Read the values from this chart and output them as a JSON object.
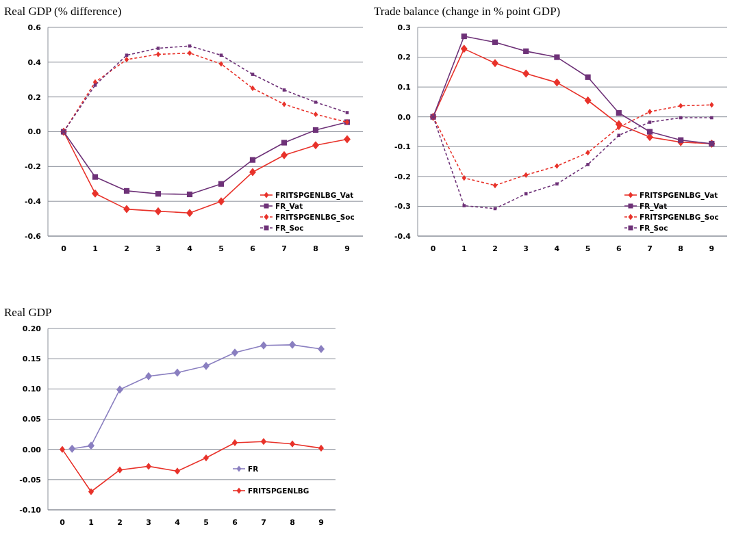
{
  "chart_data": [
    {
      "type": "line",
      "title": "Real GDP (% difference)",
      "x": [
        0,
        1,
        2,
        3,
        4,
        5,
        6,
        7,
        8,
        9
      ],
      "xlim": [
        -0.5,
        9.5
      ],
      "xticks": [
        0,
        1,
        2,
        3,
        4,
        5,
        6,
        7,
        8,
        9
      ],
      "ylim": [
        -0.6,
        0.6
      ],
      "yticks": [
        {
          "value": -0.6,
          "label": "-0.6"
        },
        {
          "value": -0.4,
          "label": "-0.4"
        },
        {
          "value": -0.2,
          "label": "-0.2"
        },
        {
          "value": 0,
          "label": "0.0"
        },
        {
          "value": 0.2,
          "label": "0.2"
        },
        {
          "value": 0.4,
          "label": "0.4"
        },
        {
          "value": 0.6,
          "label": "0.6"
        }
      ],
      "grid": "y",
      "legend": "bottom right",
      "series": [
        {
          "name": "FRITSPGENLBG_Vat",
          "color": "#e8322a",
          "marker": "diamond",
          "line_style": "solid",
          "values": [
            0,
            -0.355,
            -0.445,
            -0.457,
            -0.467,
            -0.4,
            -0.232,
            -0.135,
            -0.078,
            -0.043
          ]
        },
        {
          "name": "FR_Vat",
          "color": "#6e3278",
          "marker": "square",
          "line_style": "solid",
          "values": [
            0,
            -0.26,
            -0.34,
            -0.357,
            -0.36,
            -0.3,
            -0.162,
            -0.063,
            0.01,
            0.055
          ]
        },
        {
          "name": "FRITSPGENLBG_Soc",
          "color": "#e8322a",
          "marker": "diamond",
          "line_style": "dashed",
          "values": [
            0,
            0.285,
            0.415,
            0.445,
            0.452,
            0.39,
            0.25,
            0.158,
            0.1,
            0.055
          ]
        },
        {
          "name": "FR_Soc",
          "color": "#6e3278",
          "marker": "square",
          "line_style": "dashed",
          "values": [
            0,
            0.268,
            0.44,
            0.48,
            0.493,
            0.44,
            0.33,
            0.24,
            0.17,
            0.11
          ]
        }
      ]
    },
    {
      "type": "line",
      "title": "Trade balance (change in % point GDP)",
      "x": [
        0,
        1,
        2,
        3,
        4,
        5,
        6,
        7,
        8,
        9
      ],
      "xlim": [
        -0.5,
        9.5
      ],
      "xticks": [
        0,
        1,
        2,
        3,
        4,
        5,
        6,
        7,
        8,
        9
      ],
      "ylim": [
        -0.4,
        0.3
      ],
      "yticks": [
        {
          "value": -0.4,
          "label": "-0.4"
        },
        {
          "value": -0.3,
          "label": "-0.3"
        },
        {
          "value": -0.2,
          "label": "-0.2"
        },
        {
          "value": -0.1,
          "label": "-0.1"
        },
        {
          "value": 0,
          "label": "0.0"
        },
        {
          "value": 0.1,
          "label": "0.1"
        },
        {
          "value": 0.2,
          "label": "0.2"
        },
        {
          "value": 0.3,
          "label": "0.3"
        }
      ],
      "grid": "y",
      "legend": "bottom right",
      "series": [
        {
          "name": "FRITSPGENLBG_Vat",
          "color": "#e8322a",
          "marker": "diamond",
          "line_style": "solid",
          "values": [
            0,
            0.228,
            0.18,
            0.145,
            0.115,
            0.055,
            -0.025,
            -0.068,
            -0.085,
            -0.09
          ]
        },
        {
          "name": "FR_Vat",
          "color": "#6e3278",
          "marker": "square",
          "line_style": "solid",
          "values": [
            0,
            0.27,
            0.25,
            0.22,
            0.2,
            0.133,
            0.013,
            -0.05,
            -0.078,
            -0.09
          ]
        },
        {
          "name": "FRITSPGENLBG_Soc",
          "color": "#e8322a",
          "marker": "diamond",
          "line_style": "dashed",
          "values": [
            0,
            -0.205,
            -0.23,
            -0.195,
            -0.165,
            -0.12,
            -0.035,
            0.017,
            0.037,
            0.04
          ]
        },
        {
          "name": "FR_Soc",
          "color": "#6e3278",
          "marker": "square",
          "line_style": "dashed",
          "values": [
            0,
            -0.298,
            -0.308,
            -0.258,
            -0.225,
            -0.16,
            -0.062,
            -0.018,
            -0.003,
            -0.003
          ]
        }
      ]
    },
    {
      "type": "line",
      "title": "Real GDP",
      "x": [
        0,
        1,
        2,
        3,
        4,
        5,
        6,
        7,
        8,
        9
      ],
      "xlim": [
        -0.5,
        9.5
      ],
      "xticks": [
        0,
        1,
        2,
        3,
        4,
        5,
        6,
        7,
        8,
        9
      ],
      "ylim": [
        -0.1,
        0.2
      ],
      "yticks": [
        {
          "value": -0.1,
          "label": "-0.10"
        },
        {
          "value": -0.05,
          "label": "-0.05"
        },
        {
          "value": 0,
          "label": "0.00"
        },
        {
          "value": 0.05,
          "label": "0.05"
        },
        {
          "value": 0.1,
          "label": "0.10"
        },
        {
          "value": 0.15,
          "label": "0.15"
        },
        {
          "value": 0.2,
          "label": "0.20"
        }
      ],
      "grid": "y",
      "legend": "bottom right",
      "series": [
        {
          "name": "FR",
          "color": "#8a7fc0",
          "marker": "diamond",
          "line_style": "solid",
          "x": [
            0.34,
            1,
            2,
            3,
            4,
            5,
            6,
            7,
            8,
            9
          ],
          "values": [
            0.001,
            0.006,
            0.099,
            0.121,
            0.127,
            0.138,
            0.16,
            0.172,
            0.173,
            0.166
          ]
        },
        {
          "name": "FRITSPGENLBG",
          "color": "#e8322a",
          "marker": "diamond",
          "line_style": "solid",
          "values": [
            0,
            -0.07,
            -0.034,
            -0.028,
            -0.036,
            -0.014,
            0.011,
            0.013,
            0.009,
            0.002
          ]
        }
      ]
    }
  ]
}
